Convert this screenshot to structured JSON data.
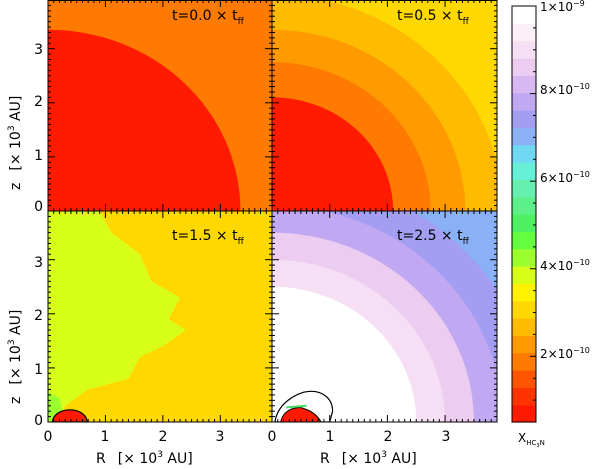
{
  "chart_data": {
    "type": "heatmap",
    "panels": [
      {
        "time_label": "t=0.0 × t",
        "time_subscript": "ff",
        "contours": [
          {
            "r": 0.0,
            "level": 5e-11
          },
          {
            "r": 3.35,
            "level": 1.5e-10
          },
          {
            "r": 4.3,
            "level": 2e-10
          }
        ]
      },
      {
        "time_label": "t=0.5 × t",
        "time_subscript": "ff",
        "contours": [
          {
            "r": 0.0,
            "level": 5e-11
          },
          {
            "r": 2.1,
            "level": 1.5e-10
          },
          {
            "r": 2.75,
            "level": 2e-10
          },
          {
            "r": 3.35,
            "level": 2.3e-10
          },
          {
            "r": 4.0,
            "level": 2.6e-10
          },
          {
            "r": 4.8,
            "level": 2.9e-10
          }
        ]
      },
      {
        "time_label": "t=1.5 × t",
        "time_subscript": "ff",
        "background_level": 3.2e-10,
        "regions": [
          {
            "shape": "blob",
            "level": 3.7e-10
          },
          {
            "shape": "inner",
            "level": 4.3e-10
          },
          {
            "shape": "core",
            "level": 5e-11
          }
        ]
      },
      {
        "time_label": "t=2.5 × t",
        "time_subscript": "ff",
        "contours": [
          {
            "r": 0.0,
            "level": 1e-09
          },
          {
            "r": 2.5,
            "level": 9.5e-10
          },
          {
            "r": 3.0,
            "level": 9e-10
          },
          {
            "r": 3.5,
            "level": 8.5e-10
          },
          {
            "r": 4.0,
            "level": 8e-10
          },
          {
            "r": 4.6,
            "level": 7.5e-10
          },
          {
            "r": 5.2,
            "level": 7e-10
          }
        ],
        "regions": [
          {
            "shape": "core",
            "level": 5e-11
          }
        ]
      }
    ],
    "x_axis": {
      "label": "R",
      "unit": "[× 10",
      "unit_sup": "3",
      "unit_tail": " AU]",
      "ticks": [
        "0",
        "1",
        "2",
        "3"
      ],
      "range": [
        0,
        3.9
      ]
    },
    "y_axis": {
      "label": "z",
      "unit": "[× 10",
      "unit_sup": "3",
      "unit_tail": " AU]",
      "ticks": [
        "0",
        "1",
        "2",
        "3"
      ],
      "range": [
        0,
        3.9
      ]
    },
    "colorbar": {
      "label": "X",
      "label_subscript": "HC",
      "label_sub2": "3",
      "label_sub3": "N",
      "range": [
        5e-11,
        1e-09
      ],
      "tick_labels": [
        {
          "text": "2×10",
          "exp": "−10",
          "value": 2e-10
        },
        {
          "text": "4×10",
          "exp": "−10",
          "value": 4e-10
        },
        {
          "text": "6×10",
          "exp": "−10",
          "value": 6e-10
        },
        {
          "text": "8×10",
          "exp": "−10",
          "value": 8e-10
        },
        {
          "text": "1×10",
          "exp": "−9",
          "value": 1e-09
        }
      ],
      "colors": [
        "#ff1a00",
        "#ff3300",
        "#ff5500",
        "#ff7a00",
        "#ff9a00",
        "#ffbb00",
        "#ffd800",
        "#fff200",
        "#d8ff1a",
        "#9cff2e",
        "#66ff40",
        "#4cf060",
        "#5cef8a",
        "#66f0b0",
        "#66f0d8",
        "#70d8f2",
        "#8ab0f5",
        "#a49ef2",
        "#c0a8f2",
        "#d8b8f2",
        "#ecccf0",
        "#f6dff4",
        "#fcf0f8",
        "#ffffff"
      ]
    }
  }
}
